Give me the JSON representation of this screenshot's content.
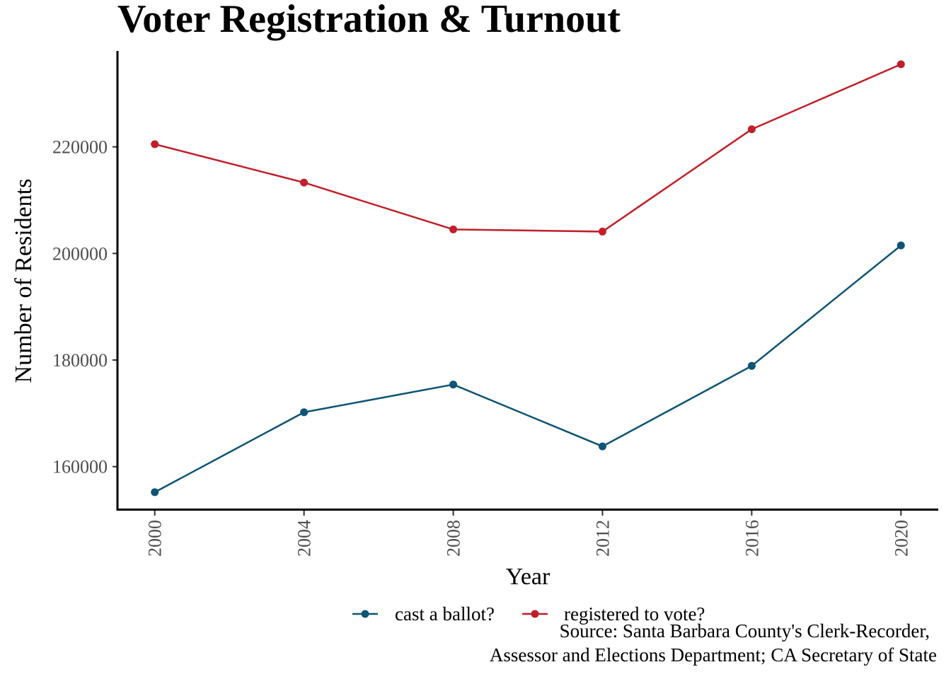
{
  "chart_data": {
    "type": "line",
    "title": "Voter Registration & Turnout",
    "xlabel": "Year",
    "ylabel": "Number of Residents",
    "x": [
      2000,
      2004,
      2008,
      2012,
      2016,
      2020
    ],
    "x_ticks": [
      "2000",
      "2004",
      "2008",
      "2012",
      "2016",
      "2020"
    ],
    "y_ticks": [
      "160000",
      "180000",
      "200000",
      "220000"
    ],
    "xlim": [
      1999,
      2021
    ],
    "ylim": [
      152000,
      238000
    ],
    "grid": false,
    "legend_position": "bottom",
    "series": [
      {
        "name": "cast a ballot?",
        "color": "#0e5475",
        "values": [
          155200,
          170200,
          175400,
          163800,
          178900,
          201500
        ]
      },
      {
        "name": "registered to vote?",
        "color": "#c11f2a",
        "values": [
          220500,
          213300,
          204500,
          204100,
          223300,
          235500
        ]
      }
    ],
    "caption": [
      "Source: Santa Barbara County's Clerk-Recorder,",
      "Assessor and Elections Department; CA Secretary of State"
    ]
  }
}
